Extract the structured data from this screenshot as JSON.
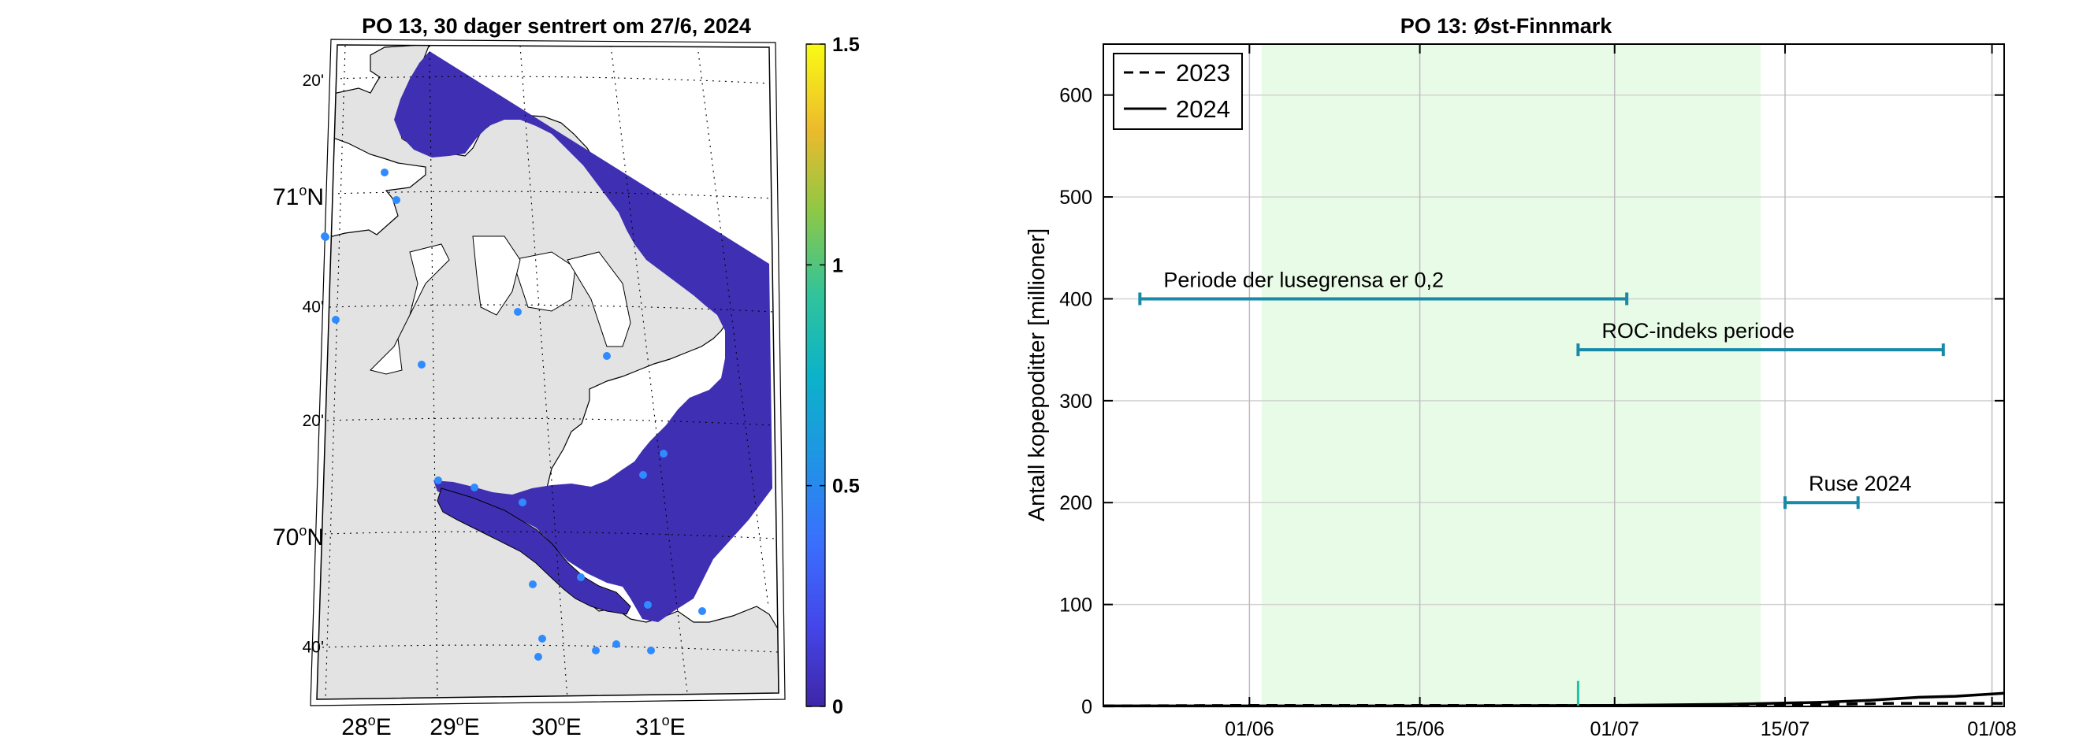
{
  "map_panel": {
    "title": "PO 13, 30 dager sentrert om 27/6, 2024",
    "lat_labels": [
      {
        "text": "20'",
        "lat": 71.333
      },
      {
        "text": "71",
        "deg": "o",
        "hemi": "N",
        "lat": 71.0,
        "major": true
      },
      {
        "text": "40'",
        "lat": 70.667
      },
      {
        "text": "20'",
        "lat": 70.333
      },
      {
        "text": "70",
        "deg": "o",
        "hemi": "N",
        "lat": 70.0,
        "major": true
      },
      {
        "text": "40'",
        "lat": 69.667
      }
    ],
    "lon_labels": [
      {
        "text": "28",
        "deg": "o",
        "hemi": "E",
        "lon": 28
      },
      {
        "text": "29",
        "deg": "o",
        "hemi": "E",
        "lon": 29
      },
      {
        "text": "30",
        "deg": "o",
        "hemi": "E",
        "lon": 30
      },
      {
        "text": "31",
        "deg": "o",
        "hemi": "E",
        "lon": 31
      }
    ],
    "colorbar": {
      "min": 0,
      "max": 1.5,
      "colormap": "parula",
      "ticks": [
        {
          "value": 0,
          "label": "0"
        },
        {
          "value": 0.5,
          "label": "0.5"
        },
        {
          "value": 1,
          "label": "1"
        },
        {
          "value": 1.5,
          "label": "1.5"
        }
      ]
    },
    "colors": {
      "land": "#e3e3e3",
      "sea_field": "#3f2fb2",
      "station": "#2f8bff"
    }
  },
  "chart_data": {
    "type": "line",
    "title": "PO 13: Øst-Finnmark",
    "ylabel": "Antall kopepoditter [millioner]",
    "xlabel": "",
    "x_axis_type": "date",
    "xlim": [
      "2024-05-20",
      "2024-08-02"
    ],
    "ylim": [
      0,
      650
    ],
    "yticks": [
      0,
      100,
      200,
      300,
      400,
      500,
      600
    ],
    "xticks": [
      {
        "date": "2024-06-01",
        "label": "01/06"
      },
      {
        "date": "2024-06-15",
        "label": "15/06"
      },
      {
        "date": "2024-07-01",
        "label": "01/07"
      },
      {
        "date": "2024-07-15",
        "label": "15/07"
      },
      {
        "date": "2024-08-01",
        "label": "01/08"
      }
    ],
    "grid": true,
    "legend_placement": "top-left",
    "shaded_period": {
      "start": "2024-06-02",
      "end": "2024-07-13",
      "color": "#e8fbe6"
    },
    "series": [
      {
        "name": "2023",
        "style": "dashed",
        "color": "#000000",
        "x": [
          "2024-05-20",
          "2024-06-01",
          "2024-06-15",
          "2024-07-01",
          "2024-07-10",
          "2024-07-18",
          "2024-07-24",
          "2024-07-28",
          "2024-08-02"
        ],
        "y": [
          0.5,
          1,
          1,
          1,
          1.5,
          2,
          3,
          3,
          3
        ]
      },
      {
        "name": "2024",
        "style": "solid",
        "color": "#000000",
        "x": [
          "2024-05-20",
          "2024-06-01",
          "2024-06-15",
          "2024-07-01",
          "2024-07-10",
          "2024-07-18",
          "2024-07-22",
          "2024-07-26",
          "2024-07-29",
          "2024-08-02"
        ],
        "y": [
          0.5,
          0.5,
          0.5,
          1,
          2,
          4,
          6,
          9,
          10,
          13
        ]
      }
    ],
    "annotations": [
      {
        "text": "Periode der lusegrensa er 0,2",
        "start": "2024-05-23",
        "end": "2024-07-02",
        "y": 400,
        "color": "#168aa8"
      },
      {
        "text": "ROC-indeks periode",
        "start": "2024-06-28",
        "end": "2024-07-28",
        "y": 350,
        "color": "#168aa8"
      },
      {
        "text": "Ruse 2024",
        "start": "2024-07-15",
        "end": "2024-07-21",
        "y": 200,
        "color": "#168aa8"
      }
    ],
    "marker": {
      "date": "2024-06-28",
      "y_top": 25,
      "color": "#20c2a4"
    }
  }
}
